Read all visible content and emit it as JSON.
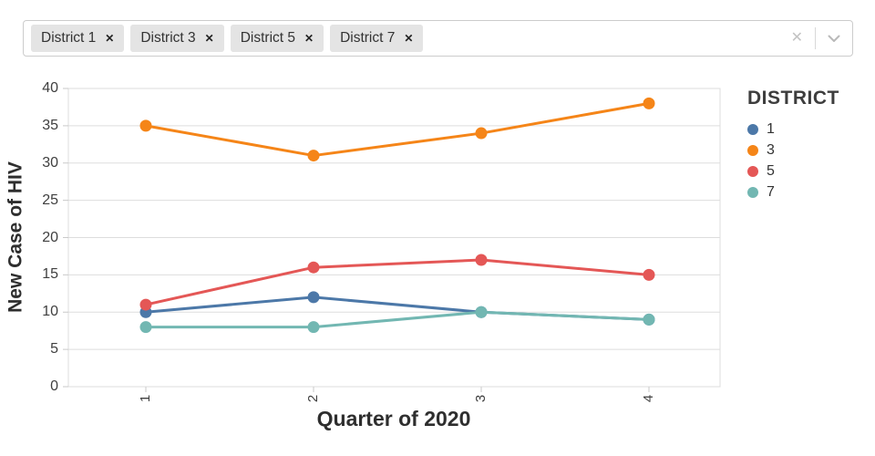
{
  "select": {
    "tags": [
      {
        "label": "District 1"
      },
      {
        "label": "District 3"
      },
      {
        "label": "District 5"
      },
      {
        "label": "District 7"
      }
    ],
    "remove_icon": "✕",
    "clear_icon": "✕"
  },
  "chart_data": {
    "type": "line",
    "x": [
      "1",
      "2",
      "3",
      "4"
    ],
    "series": [
      {
        "name": "1",
        "color": "#4c78a8",
        "values": [
          10,
          12,
          10,
          9
        ]
      },
      {
        "name": "3",
        "color": "#f58518",
        "values": [
          35,
          31,
          34,
          38
        ]
      },
      {
        "name": "5",
        "color": "#e45756",
        "values": [
          11,
          16,
          17,
          15
        ]
      },
      {
        "name": "7",
        "color": "#72b7b2",
        "values": [
          8,
          8,
          10,
          9
        ]
      }
    ],
    "title": "",
    "xlabel": "Quarter of 2020",
    "ylabel": "New Case of HIV",
    "ylim": [
      0,
      40
    ],
    "yticks": [
      0,
      5,
      10,
      15,
      20,
      25,
      30,
      35,
      40
    ],
    "grid": true,
    "legend_title": "DISTRICT",
    "legend_position": "right",
    "grid_color": "#dddddd",
    "tick_color": "#c9c9c9"
  }
}
